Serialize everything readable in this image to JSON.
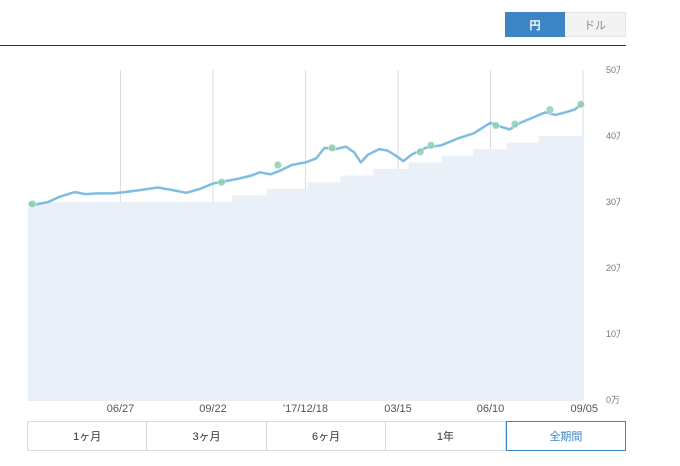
{
  "currency": {
    "options": [
      "円",
      "ドル"
    ],
    "selected": "円"
  },
  "periods": {
    "options": [
      "1ヶ月",
      "3ヶ月",
      "6ヶ月",
      "1年",
      "全期間"
    ],
    "selected": "全期間"
  },
  "colors": {
    "accent": "#3d86c6",
    "line": "#7fbde3",
    "area": "#eaf0f7",
    "grid": "#dddddd",
    "marker": "#8fcfb0"
  },
  "chart_data": {
    "type": "line",
    "title": "",
    "xlabel": "",
    "ylabel": "",
    "y_unit": "万",
    "ylim": [
      0,
      500000
    ],
    "xlim": [
      "2017-04-01",
      "2018-09-05"
    ],
    "grid": true,
    "x_ticks": [
      {
        "date": "2017-06-27",
        "label": "06/27"
      },
      {
        "date": "2017-09-22",
        "label": "09/22"
      },
      {
        "date": "2017-12-18",
        "label": "'17/12/18"
      },
      {
        "date": "2018-03-15",
        "label": "03/15"
      },
      {
        "date": "2018-06-10",
        "label": "06/10"
      },
      {
        "date": "2018-09-05",
        "label": "09/05"
      }
    ],
    "y_ticks": [
      {
        "value": 0,
        "label": "0万"
      },
      {
        "value": 100000,
        "label": "10万"
      },
      {
        "value": 200000,
        "label": "20万"
      },
      {
        "value": 300000,
        "label": "30万"
      },
      {
        "value": 400000,
        "label": "40万"
      },
      {
        "value": 500000,
        "label": "50万"
      }
    ],
    "series": [
      {
        "role": "invested",
        "kind": "step-area",
        "points": [
          [
            "2017-04-01",
            300000
          ],
          [
            "2017-10-10",
            310000
          ],
          [
            "2017-11-12",
            320000
          ],
          [
            "2017-12-20",
            330000
          ],
          [
            "2018-01-20",
            340000
          ],
          [
            "2018-02-20",
            350000
          ],
          [
            "2018-03-25",
            360000
          ],
          [
            "2018-04-25",
            370000
          ],
          [
            "2018-05-25",
            380000
          ],
          [
            "2018-06-25",
            390000
          ],
          [
            "2018-07-25",
            400000
          ],
          [
            "2018-09-05",
            400000
          ]
        ]
      },
      {
        "role": "valuation",
        "kind": "line",
        "points": [
          [
            "2017-04-01",
            298000
          ],
          [
            "2017-04-08",
            296000
          ],
          [
            "2017-04-20",
            300000
          ],
          [
            "2017-05-01",
            308000
          ],
          [
            "2017-05-15",
            315000
          ],
          [
            "2017-05-25",
            312000
          ],
          [
            "2017-06-05",
            313000
          ],
          [
            "2017-06-20",
            313000
          ],
          [
            "2017-07-01",
            315000
          ],
          [
            "2017-07-15",
            318000
          ],
          [
            "2017-08-01",
            322000
          ],
          [
            "2017-08-15",
            318000
          ],
          [
            "2017-08-28",
            314000
          ],
          [
            "2017-09-10",
            320000
          ],
          [
            "2017-09-22",
            328000
          ],
          [
            "2017-10-05",
            332000
          ],
          [
            "2017-10-15",
            335000
          ],
          [
            "2017-10-28",
            340000
          ],
          [
            "2017-11-05",
            345000
          ],
          [
            "2017-11-15",
            342000
          ],
          [
            "2017-11-25",
            348000
          ],
          [
            "2017-12-05",
            356000
          ],
          [
            "2017-12-18",
            360000
          ],
          [
            "2017-12-28",
            366000
          ],
          [
            "2018-01-05",
            382000
          ],
          [
            "2018-01-15",
            380000
          ],
          [
            "2018-01-25",
            384000
          ],
          [
            "2018-02-02",
            375000
          ],
          [
            "2018-02-08",
            360000
          ],
          [
            "2018-02-15",
            372000
          ],
          [
            "2018-02-25",
            380000
          ],
          [
            "2018-03-05",
            378000
          ],
          [
            "2018-03-15",
            368000
          ],
          [
            "2018-03-20",
            362000
          ],
          [
            "2018-03-28",
            372000
          ],
          [
            "2018-04-10",
            382000
          ],
          [
            "2018-04-25",
            386000
          ],
          [
            "2018-05-10",
            396000
          ],
          [
            "2018-05-25",
            404000
          ],
          [
            "2018-06-10",
            420000
          ],
          [
            "2018-06-20",
            414000
          ],
          [
            "2018-06-28",
            410000
          ],
          [
            "2018-07-08",
            420000
          ],
          [
            "2018-07-20",
            428000
          ],
          [
            "2018-08-01",
            436000
          ],
          [
            "2018-08-10",
            432000
          ],
          [
            "2018-08-20",
            436000
          ],
          [
            "2018-08-28",
            440000
          ],
          [
            "2018-09-05",
            450000
          ]
        ]
      }
    ],
    "markers": [
      [
        "2017-04-05",
        297000
      ],
      [
        "2017-09-30",
        330000
      ],
      [
        "2017-11-22",
        356000
      ],
      [
        "2018-01-12",
        382000
      ],
      [
        "2018-04-05",
        376000
      ],
      [
        "2018-04-15",
        386000
      ],
      [
        "2018-06-15",
        416000
      ],
      [
        "2018-07-03",
        418000
      ],
      [
        "2018-08-05",
        440000
      ],
      [
        "2018-09-03",
        448000
      ]
    ]
  }
}
